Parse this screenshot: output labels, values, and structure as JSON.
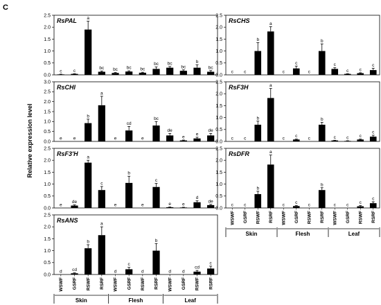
{
  "figure": {
    "panel_letter": "C",
    "y_axis_title": "Relative expression level"
  },
  "chart_data": [
    {
      "type": "bar",
      "title": "RsPAL",
      "categories": [
        "WSWF",
        "GSRF",
        "RSWF",
        "RSRF",
        "WSWF",
        "GSRF",
        "RSWF",
        "RSRF",
        "WSWF",
        "GSRF",
        "RSWF",
        "RSRF"
      ],
      "groups": [
        "Skin",
        "Flesh",
        "Leaf"
      ],
      "values": [
        0.02,
        0.04,
        1.9,
        0.13,
        0.08,
        0.14,
        0.09,
        0.25,
        0.3,
        0.17,
        0.3,
        0.13
      ],
      "errors": [
        0.01,
        0.01,
        0.35,
        0.03,
        0.02,
        0.03,
        0.02,
        0.08,
        0.05,
        0.04,
        0.12,
        0.05
      ],
      "labels": [
        "c",
        "c",
        "a",
        "bc",
        "bc",
        "bc",
        "bc",
        "bc",
        "bc",
        "bc",
        "b",
        "bc"
      ],
      "yticks": [
        0.0,
        0.5,
        1.0,
        1.5,
        2.0,
        2.5
      ],
      "ylim": [
        0,
        2.5
      ]
    },
    {
      "type": "bar",
      "title": "RsCHS",
      "categories": [
        "WSWF",
        "GSRF",
        "RSWF",
        "RSRF",
        "WSWF",
        "GSRF",
        "RSWF",
        "RSRF",
        "WSWF",
        "GSRF",
        "RSWF",
        "RSRF"
      ],
      "groups": [
        "Skin",
        "Flesh",
        "Leaf"
      ],
      "values": [
        0.0,
        0.0,
        1.0,
        1.82,
        0.0,
        0.27,
        0.0,
        1.0,
        0.25,
        0.04,
        0.07,
        0.2
      ],
      "errors": [
        0.0,
        0.0,
        0.35,
        0.2,
        0.0,
        0.1,
        0.0,
        0.3,
        0.05,
        0.01,
        0.02,
        0.08
      ],
      "labels": [
        "c",
        "c",
        "b",
        "a",
        "c",
        "c",
        "c",
        "b",
        "c",
        "c",
        "c",
        "c"
      ],
      "yticks": [
        0.0,
        0.5,
        1.0,
        1.5,
        2.0,
        2.5
      ],
      "ylim": [
        0,
        2.5
      ]
    },
    {
      "type": "bar",
      "title": "RsCHI",
      "categories": [
        "WSWF",
        "GSRF",
        "RSWF",
        "RSRF",
        "WSWF",
        "GSRF",
        "RSWF",
        "RSRF",
        "WSWF",
        "GSRF",
        "RSWF",
        "RSRF"
      ],
      "groups": [
        "Skin",
        "Flesh",
        "Leaf"
      ],
      "values": [
        0.0,
        0.0,
        0.92,
        1.82,
        0.0,
        0.55,
        0.0,
        0.8,
        0.3,
        0.05,
        0.15,
        0.3
      ],
      "errors": [
        0.0,
        0.0,
        0.2,
        0.45,
        0.0,
        0.2,
        0.0,
        0.2,
        0.1,
        0.02,
        0.06,
        0.1
      ],
      "labels": [
        "e",
        "e",
        "b",
        "a",
        "e",
        "cd",
        "e",
        "bc",
        "de",
        "e",
        "e",
        "de"
      ],
      "yticks": [
        0.0,
        0.5,
        1.0,
        1.5,
        2.0,
        2.5,
        3.0
      ],
      "ylim": [
        0,
        3.0
      ]
    },
    {
      "type": "bar",
      "title": "RsF3H",
      "categories": [
        "WSWF",
        "GSRF",
        "RSWF",
        "RSRF",
        "WSWF",
        "GSRF",
        "RSWF",
        "RSRF",
        "WSWF",
        "GSRF",
        "RSWF",
        "RSRF"
      ],
      "groups": [
        "Skin",
        "Flesh",
        "Leaf"
      ],
      "values": [
        0.0,
        0.0,
        0.7,
        1.82,
        0.0,
        0.08,
        0.0,
        0.7,
        0.04,
        0.02,
        0.08,
        0.2
      ],
      "errors": [
        0.0,
        0.0,
        0.15,
        0.4,
        0.0,
        0.02,
        0.0,
        0.1,
        0.01,
        0.01,
        0.02,
        0.06
      ],
      "labels": [
        "c",
        "c",
        "b",
        "a",
        "c",
        "c",
        "c",
        "b",
        "c",
        "c",
        "c",
        "c"
      ],
      "yticks": [
        0.0,
        0.5,
        1.0,
        1.5,
        2.0,
        2.5
      ],
      "ylim": [
        0,
        2.5
      ]
    },
    {
      "type": "bar",
      "title": "RsF3'H",
      "categories": [
        "WSWF",
        "GSRF",
        "RSWF",
        "RSRF",
        "WSWF",
        "GSRF",
        "RSWF",
        "RSRF",
        "WSWF",
        "GSRF",
        "RSWF",
        "RSRF"
      ],
      "groups": [
        "Skin",
        "Flesh",
        "Leaf"
      ],
      "values": [
        0.0,
        0.1,
        1.9,
        0.75,
        0.0,
        1.05,
        0.0,
        0.88,
        0.03,
        0.02,
        0.24,
        0.12
      ],
      "errors": [
        0.0,
        0.03,
        0.1,
        0.15,
        0.0,
        0.28,
        0.0,
        0.15,
        0.01,
        0.01,
        0.06,
        0.03
      ],
      "labels": [
        "e",
        "de",
        "a",
        "c",
        "e",
        "b",
        "e",
        "c",
        "e",
        "e",
        "d",
        "de"
      ],
      "yticks": [
        0.0,
        0.5,
        1.0,
        1.5,
        2.0,
        2.5
      ],
      "ylim": [
        0,
        2.5
      ]
    },
    {
      "type": "bar",
      "title": "RsDFR",
      "categories": [
        "WSWF",
        "GSRF",
        "RSWF",
        "RSRF",
        "WSWF",
        "GSRF",
        "RSWF",
        "RSRF",
        "WSWF",
        "GSRF",
        "RSWF",
        "RSRF"
      ],
      "groups": [
        "Skin",
        "Flesh",
        "Leaf"
      ],
      "values": [
        0.0,
        0.0,
        0.58,
        1.82,
        0.0,
        0.08,
        0.0,
        0.75,
        0.0,
        0.0,
        0.07,
        0.2
      ],
      "errors": [
        0.0,
        0.0,
        0.12,
        0.4,
        0.0,
        0.02,
        0.0,
        0.1,
        0.0,
        0.0,
        0.03,
        0.06
      ],
      "labels": [
        "c",
        "c",
        "b",
        "a",
        "c",
        "c",
        "c",
        "b",
        "c",
        "c",
        "c",
        "c"
      ],
      "yticks": [
        0.0,
        0.5,
        1.0,
        1.5,
        2.0,
        2.5
      ],
      "ylim": [
        0,
        2.5
      ]
    },
    {
      "type": "bar",
      "title": "RsANS",
      "categories": [
        "WSWF",
        "GSRF",
        "RSWF",
        "RSRF",
        "WSWF",
        "GSRF",
        "RSWF",
        "RSRF",
        "WSWF",
        "GSRF",
        "RSWF",
        "RSRF"
      ],
      "groups": [
        "Skin",
        "Flesh",
        "Leaf"
      ],
      "values": [
        0.0,
        0.05,
        1.1,
        1.65,
        0.0,
        0.22,
        0.0,
        1.0,
        0.0,
        0.0,
        0.12,
        0.25
      ],
      "errors": [
        0.0,
        0.02,
        0.15,
        0.35,
        0.0,
        0.08,
        0.0,
        0.3,
        0.0,
        0.0,
        0.05,
        0.1
      ],
      "labels": [
        "d",
        "cd",
        "b",
        "a",
        "d",
        "c",
        "d",
        "b",
        "d",
        "d",
        "cd",
        "c"
      ],
      "yticks": [
        0.0,
        0.5,
        1.0,
        1.5,
        2.0,
        2.5
      ],
      "ylim": [
        0,
        2.5
      ]
    }
  ]
}
